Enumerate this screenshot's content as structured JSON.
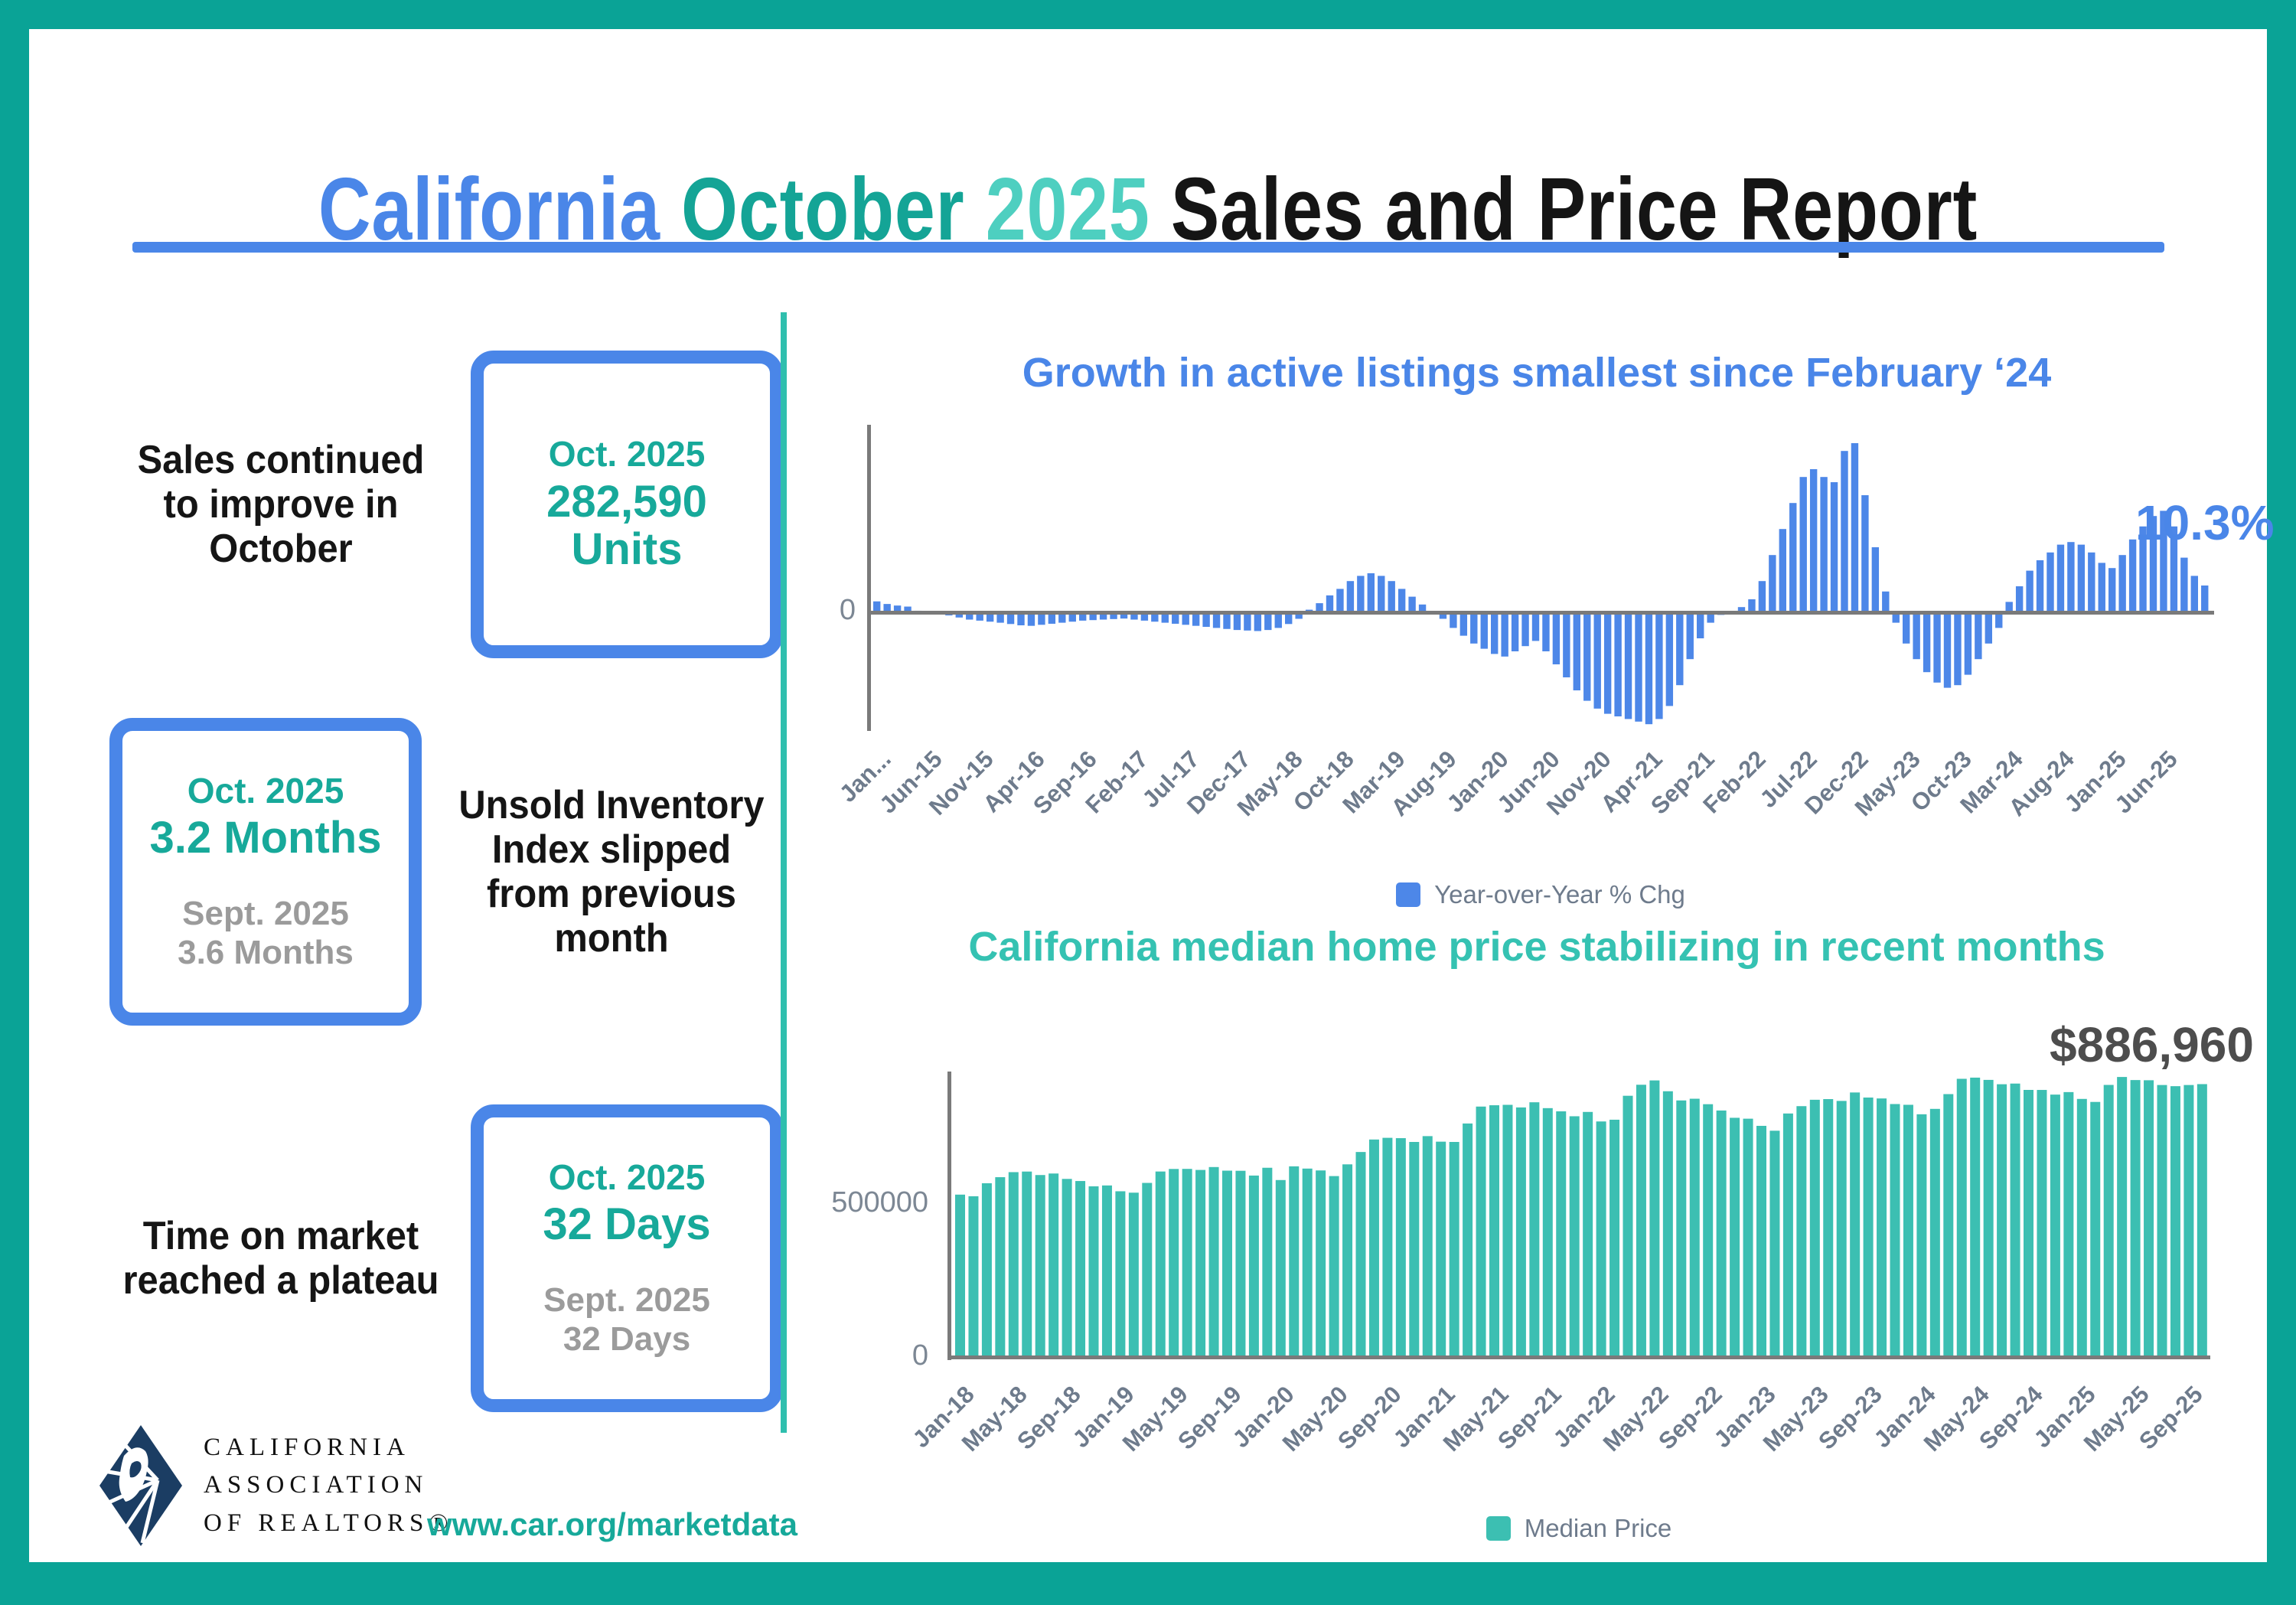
{
  "title": {
    "california": "California",
    "october": "October",
    "year": "2025",
    "rest": "Sales and Price Report"
  },
  "stats": [
    {
      "label": "Sales continued to improve in October",
      "box": {
        "period": "Oct. 2025",
        "value": "282,590",
        "value_line2": "Units"
      }
    },
    {
      "label": "Unsold Inventory Index slipped from previous month",
      "box": {
        "period": "Oct. 2025",
        "value": "3.2 Months",
        "prev_period": "Sept. 2025",
        "prev_value": "3.6 Months"
      }
    },
    {
      "label": "Time on market reached a plateau",
      "box": {
        "period": "Oct. 2025",
        "value": "32 Days",
        "prev_period": "Sept. 2025",
        "prev_value": "32 Days"
      }
    }
  ],
  "footer": {
    "logo_lines": [
      "CALIFORNIA",
      "ASSOCIATION",
      "OF REALTORS®"
    ],
    "url": "www.car.org/marketdata"
  },
  "colors": {
    "frame_teal": "#0aa396",
    "divider_teal": "#2fbfae",
    "blue": "#4a86e8",
    "title_teal_dark": "#14a496",
    "title_teal_light": "#4ecfc0",
    "stat_teal": "#17a99a",
    "secondary_gray": "#9b9b9b",
    "bar_blue": "#4d87e8",
    "bar_teal": "#3cbfb2",
    "axis_gray": "#7a7a7a",
    "tick_gray": "#6e7b8c",
    "annotation_dark": "#4d4d4d",
    "logo_navy": "#1b3d63"
  },
  "chart_data": [
    {
      "type": "bar",
      "title": "Growth in active listings smallest since February ‘24",
      "legend": "Year-over-Year % Chg",
      "annotation": "10.3%",
      "color": "#4d87e8",
      "y_ticks": [
        "0"
      ],
      "ylim": [
        -45,
        70
      ],
      "grid": false,
      "legend_position": "bottom",
      "x_start": "Jan-15",
      "x_end": "Oct-25",
      "tick_every_n_bars": 5,
      "tick_labels": [
        "Jan...",
        "Jun-15",
        "Nov-15",
        "Apr-16",
        "Sep-16",
        "Feb-17",
        "Jul-17",
        "Dec-17",
        "May-18",
        "Oct-18",
        "Mar-19",
        "Aug-19",
        "Jan-20",
        "Jun-20",
        "Nov-20",
        "Apr-21",
        "Sep-21",
        "Feb-22",
        "Jul-22",
        "Dec-22",
        "May-23",
        "Oct-23",
        "Mar-24",
        "Aug-24",
        "Jan-25",
        "Jun-25"
      ],
      "values": [
        4.2,
        3.2,
        2.6,
        2.2,
        0.6,
        0.3,
        -0.4,
        -1.2,
        -2,
        -2.8,
        -3.2,
        -3.6,
        -4,
        -4.5,
        -5,
        -5.2,
        -4.8,
        -4.4,
        -4,
        -3.6,
        -3.2,
        -3,
        -2.8,
        -2.6,
        -2.4,
        -2.8,
        -3.2,
        -3.6,
        -4,
        -4.4,
        -4.8,
        -5.2,
        -5.6,
        -6,
        -6.4,
        -6.8,
        -7,
        -7.2,
        -6.8,
        -6,
        -4.5,
        -2.5,
        1,
        3.5,
        6.5,
        9,
        12,
        14,
        15,
        14,
        12,
        9,
        6,
        3,
        0.5,
        -2.5,
        -6,
        -9,
        -12,
        -14,
        -16,
        -17,
        -15,
        -13,
        -11,
        -15,
        -20,
        -25,
        -30,
        -34,
        -37,
        -39,
        -40,
        -41,
        -42,
        -43,
        -41,
        -36,
        -28,
        -18,
        -10,
        -4,
        -1,
        0.5,
        2,
        5,
        12,
        22,
        32,
        42,
        52,
        55,
        52,
        50,
        62,
        65,
        45,
        25,
        8,
        -4,
        -12,
        -18,
        -23,
        -27,
        -29,
        -28,
        -24,
        -18,
        -12,
        -6,
        4,
        10,
        16,
        20,
        23,
        26,
        27,
        26,
        23,
        19,
        17,
        22,
        28,
        33,
        37,
        39,
        33,
        21,
        14,
        10.3
      ]
    },
    {
      "type": "bar",
      "title": "California median home price stabilizing in recent months",
      "legend": "Median Price",
      "annotation": "$886,960",
      "color": "#3cbfb2",
      "y_ticks": [
        "0",
        "500000"
      ],
      "ylim": [
        0,
        950000
      ],
      "grid": false,
      "legend_position": "bottom",
      "x_start": "Jan-18",
      "x_end": "Oct-25",
      "tick_every_n_bars": 4,
      "tick_labels": [
        "Jan-18",
        "May-18",
        "Sep-18",
        "Jan-19",
        "May-19",
        "Sep-19",
        "Jan-20",
        "May-20",
        "Sep-20",
        "Jan-21",
        "May-21",
        "Sep-21",
        "Jan-22",
        "May-22",
        "Sep-22",
        "Jan-23",
        "May-23",
        "Sep-23",
        "Jan-24",
        "May-24",
        "Sep-24",
        "Jan-25",
        "May-25",
        "Sep-25"
      ],
      "values": [
        527800,
        522440,
        564830,
        584460,
        600860,
        602760,
        591460,
        596410,
        578850,
        572000,
        554760,
        557600,
        538690,
        534140,
        565880,
        602920,
        611190,
        611420,
        607990,
        617410,
        605680,
        605280,
        589770,
        615090,
        575160,
        619750,
        612440,
        606410,
        588070,
        626170,
        666320,
        706900,
        712430,
        711300,
        699000,
        717930,
        699890,
        699000,
        758990,
        813980,
        818260,
        819630,
        811170,
        827940,
        808890,
        798440,
        782480,
        796570,
        765580,
        771270,
        849080,
        884890,
        898980,
        863790,
        833910,
        839460,
        821680,
        801190,
        777500,
        774580,
        751330,
        735480,
        791490,
        815340,
        836110,
        838260,
        832340,
        859800,
        843340,
        840360,
        822200,
        819740,
        788940,
        806490,
        854490,
        904210,
        908040,
        900720,
        886560,
        888740,
        868150,
        868050,
        852880,
        861020,
        838850,
        829060,
        884350,
        910160,
        900170,
        899560,
        884050,
        880250,
        884050,
        886960
      ]
    }
  ]
}
